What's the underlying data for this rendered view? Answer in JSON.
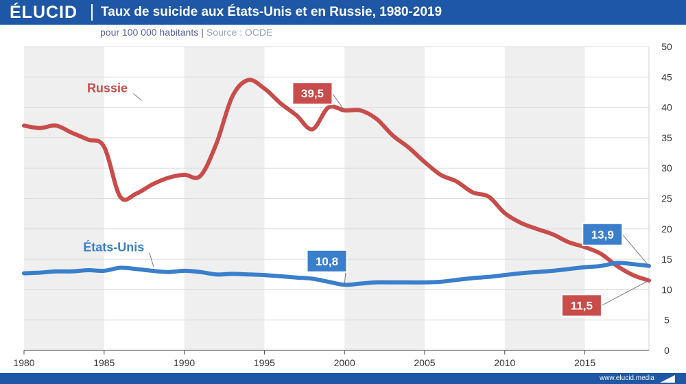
{
  "brand": {
    "logo": "ÉLUCID",
    "footer_url": "www.elucid.media"
  },
  "header": {
    "title": "Taux de suicide aux États-Unis et en Russie, 1980-2019"
  },
  "subtitle": {
    "unit": "pour 100 000 habitants",
    "separator": "|",
    "source": "Source : OCDE"
  },
  "colors": {
    "russia": "#c84c4a",
    "usa": "#3a7fcb",
    "band": "#efefef",
    "brand": "#1d57a6"
  },
  "chart_data": {
    "type": "line",
    "title": "Taux de suicide aux États-Unis et en Russie, 1980-2019",
    "xlabel": "",
    "ylabel": "pour 100 000 habitants",
    "xlim": [
      1980,
      2019
    ],
    "ylim": [
      0,
      50
    ],
    "x_ticks": [
      "1980",
      "1985",
      "1990",
      "1995",
      "2000",
      "2005",
      "2010",
      "2015"
    ],
    "y_ticks": [
      "0",
      "5",
      "10",
      "15",
      "20",
      "25",
      "30",
      "35",
      "40",
      "45",
      "50"
    ],
    "grid": true,
    "series": [
      {
        "name": "Russie",
        "x": [
          1980,
          1981,
          1982,
          1983,
          1984,
          1985,
          1986,
          1987,
          1988,
          1989,
          1990,
          1991,
          1992,
          1993,
          1994,
          1995,
          1996,
          1997,
          1998,
          1999,
          2000,
          2001,
          2002,
          2003,
          2004,
          2005,
          2006,
          2007,
          2008,
          2009,
          2010,
          2011,
          2012,
          2013,
          2014,
          2015,
          2016,
          2017,
          2018,
          2019
        ],
        "values": [
          37.0,
          36.6,
          37.0,
          35.8,
          34.7,
          33.5,
          25.3,
          25.8,
          27.3,
          28.4,
          28.9,
          28.7,
          34.0,
          41.8,
          44.5,
          43.1,
          40.7,
          38.7,
          36.4,
          40.0,
          39.5,
          39.5,
          38.1,
          35.4,
          33.4,
          31.0,
          28.9,
          27.8,
          26.0,
          25.3,
          22.6,
          21.0,
          20.0,
          19.1,
          17.8,
          17.0,
          15.9,
          13.9,
          12.4,
          11.5
        ]
      },
      {
        "name": "États-Unis",
        "x": [
          1980,
          1981,
          1982,
          1983,
          1984,
          1985,
          1986,
          1987,
          1988,
          1989,
          1990,
          1991,
          1992,
          1993,
          1994,
          1995,
          1996,
          1997,
          1998,
          1999,
          2000,
          2001,
          2002,
          2003,
          2004,
          2005,
          2006,
          2007,
          2008,
          2009,
          2010,
          2011,
          2012,
          2013,
          2014,
          2015,
          2016,
          2017,
          2018,
          2019
        ],
        "values": [
          12.7,
          12.8,
          13.0,
          13.0,
          13.2,
          13.1,
          13.6,
          13.4,
          13.1,
          12.9,
          13.1,
          12.9,
          12.5,
          12.6,
          12.5,
          12.4,
          12.2,
          12.0,
          11.8,
          11.3,
          10.8,
          11.0,
          11.2,
          11.2,
          11.2,
          11.2,
          11.3,
          11.6,
          11.9,
          12.1,
          12.4,
          12.7,
          12.9,
          13.1,
          13.4,
          13.7,
          13.9,
          14.4,
          14.2,
          13.9
        ]
      }
    ],
    "series_labels": [
      {
        "series": 0,
        "text": "Russie",
        "x": 1985.2,
        "y": 42.5
      },
      {
        "series": 1,
        "text": "États-Unis",
        "x": 1985.6,
        "y": 16.3
      }
    ],
    "annotations": [
      {
        "series": 0,
        "text": "39,5",
        "x": 2000,
        "y": 39.5,
        "label_x": 1998,
        "label_y": 42.3
      },
      {
        "series": 1,
        "text": "10,8",
        "x": 2000,
        "y": 10.8,
        "label_x": 1998.9,
        "label_y": 14.7
      },
      {
        "series": 1,
        "text": "13,9",
        "x": 2019,
        "y": 13.9,
        "label_x": 2016.1,
        "label_y": 19.1
      },
      {
        "series": 0,
        "text": "11,5",
        "x": 2019,
        "y": 11.5,
        "label_x": 2014.8,
        "label_y": 7.4
      }
    ]
  }
}
